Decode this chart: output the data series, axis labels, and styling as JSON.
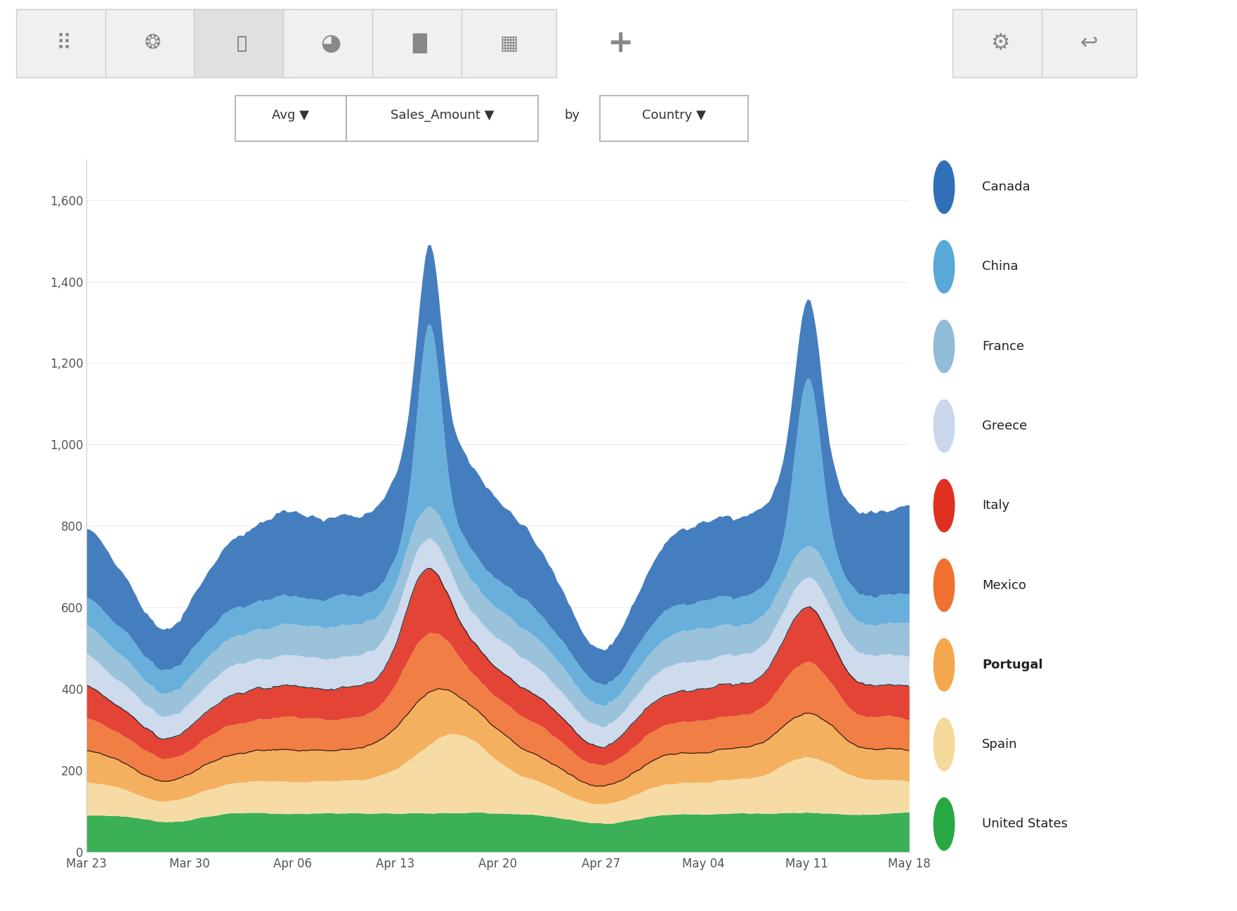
{
  "countries_bottom_to_top": [
    "United States",
    "Spain",
    "Portugal",
    "Mexico",
    "Italy",
    "Greece",
    "France",
    "China",
    "Canada"
  ],
  "colors_bottom_to_top": [
    "#27a844",
    "#f5d99a",
    "#f4a84e",
    "#f07030",
    "#e03020",
    "#c8d8ea",
    "#90bcd8",
    "#58a8d8",
    "#3070b8"
  ],
  "legend_order": [
    "Canada",
    "China",
    "France",
    "Greece",
    "Italy",
    "Mexico",
    "Portugal",
    "Spain",
    "United States"
  ],
  "legend_colors": [
    "#3070b8",
    "#58a8d8",
    "#90bcd8",
    "#c8d8ea",
    "#e03020",
    "#f07030",
    "#f4a84e",
    "#f5d99a",
    "#27a844"
  ],
  "x_labels": [
    "Mar 23",
    "Mar 30",
    "Apr 06",
    "Apr 13",
    "Apr 20",
    "Apr 27",
    "May 04",
    "May 11",
    "May 18"
  ],
  "ylim": [
    0,
    1700
  ],
  "yticks": [
    0,
    200,
    400,
    600,
    800,
    1000,
    1200,
    1400,
    1600
  ],
  "bg_color": "#ffffff",
  "portugal_bold": true,
  "n_points": 300
}
